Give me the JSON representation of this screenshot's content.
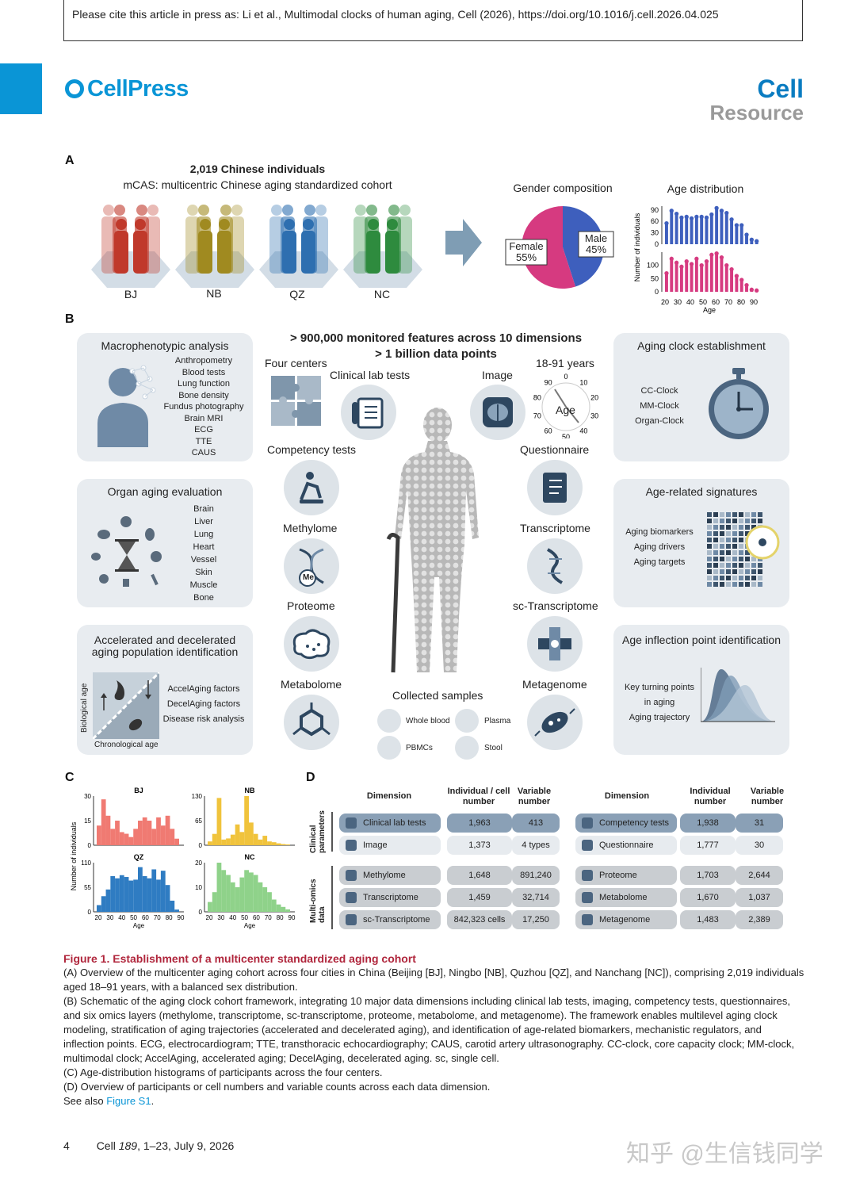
{
  "header": {
    "cite": "Please cite this article in press as: Li et al., Multimodal clocks of human aging, Cell (2026), https://doi.org/10.1016/j.cell.2026.04.025",
    "publisher": "CellPress",
    "journal": "Cell",
    "section": "Resource"
  },
  "panelA": {
    "letter": "A",
    "title": "2,019 Chinese individuals",
    "subtitle": "mCAS: multicentric Chinese aging standardized cohort",
    "centers": [
      "BJ",
      "NB",
      "QZ",
      "NC"
    ],
    "center_colors": [
      "#c0392b",
      "#a08a20",
      "#2e6fb0",
      "#2e8b3e"
    ],
    "gender_title": "Gender composition",
    "female_label": "Female",
    "female_pct": "55%",
    "male_label": "Male",
    "male_pct": "45%",
    "age_title": "Age distribution",
    "ylabel": "Number of individuals",
    "xlabel": "Age",
    "yticks_top": [
      "90",
      "60",
      "30",
      "0"
    ],
    "yticks_bottom": [
      "100",
      "50",
      "0"
    ],
    "xticks": [
      "20",
      "30",
      "40",
      "50",
      "60",
      "70",
      "80",
      "90"
    ]
  },
  "panelB": {
    "letter": "B",
    "headline1": "> 900,000 monitored features across 10 dimensions",
    "headline2": "> 1 billion data points",
    "macro": {
      "title": "Macrophenotypic analysis",
      "items": [
        "Anthropometry",
        "Blood tests",
        "Lung function",
        "Bone density",
        "Fundus photography",
        "Brain MRI",
        "ECG",
        "TTE",
        "CAUS"
      ]
    },
    "organ": {
      "title": "Organ aging evaluation",
      "items": [
        "Brain",
        "Liver",
        "Lung",
        "Heart",
        "Vessel",
        "Skin",
        "Muscle",
        "Bone"
      ]
    },
    "accel": {
      "title1": "Accelerated and decelerated",
      "title2": "aging population identification",
      "items": [
        "AccelAging factors",
        "DecelAging factors",
        "Disease risk analysis"
      ],
      "ylabel": "Biological age",
      "xlabel": "Chronological age"
    },
    "clock": {
      "title": "Aging clock establishment",
      "items": [
        "CC-Clock",
        "MM-Clock",
        "Organ-Clock"
      ]
    },
    "signatures": {
      "title": "Age-related signatures",
      "items": [
        "Aging biomarkers",
        "Aging drivers",
        "Aging targets"
      ]
    },
    "inflection": {
      "title": "Age inflection point identification",
      "items": [
        "Key turning points",
        "in aging",
        "Aging trajectory"
      ]
    },
    "dims": {
      "four_centers": "Four centers",
      "clinical": "Clinical lab tests",
      "image": "Image",
      "years": "18-91 years",
      "age": "Age",
      "dial": [
        "0",
        "10",
        "20",
        "30",
        "40",
        "50",
        "60",
        "70",
        "80",
        "90"
      ],
      "competency": "Competency tests",
      "questionnaire": "Questionnaire",
      "methylome": "Methylome",
      "transcriptome": "Transcriptome",
      "proteome": "Proteome",
      "sctranscriptome": "sc-Transcriptome",
      "metabolome": "Metabolome",
      "metagenome": "Metagenome",
      "me": "Me"
    },
    "samples": {
      "title": "Collected samples",
      "items": [
        "Whole blood",
        "Plasma",
        "PBMCs",
        "Stool"
      ]
    }
  },
  "panelC": {
    "letter": "C",
    "ylabel": "Number of individuals",
    "xlabel": "Age",
    "xticks": [
      "20",
      "30",
      "40",
      "50",
      "60",
      "70",
      "80",
      "90"
    ]
  },
  "panelD": {
    "letter": "D",
    "left_headers": [
      "Dimension",
      "Individual / cell number",
      "Variable number"
    ],
    "right_headers": [
      "Dimension",
      "Individual number",
      "Variable number"
    ],
    "group1": "Clinical parameters",
    "group2": "Multi-omics data",
    "rows_left": [
      {
        "name": "Clinical lab tests",
        "n": "1,963",
        "v": "413"
      },
      {
        "name": "Image",
        "n": "1,373",
        "v": "4 types"
      },
      {
        "name": "Methylome",
        "n": "1,648",
        "v": "891,240"
      },
      {
        "name": "Transcriptome",
        "n": "1,459",
        "v": "32,714"
      },
      {
        "name": "sc-Transcriptome",
        "n": "842,323 cells",
        "v": "17,250"
      }
    ],
    "rows_right": [
      {
        "name": "Competency tests",
        "n": "1,938",
        "v": "31"
      },
      {
        "name": "Questionnaire",
        "n": "1,777",
        "v": "30"
      },
      {
        "name": "Proteome",
        "n": "1,703",
        "v": "2,644"
      },
      {
        "name": "Metabolome",
        "n": "1,670",
        "v": "1,037"
      },
      {
        "name": "Metagenome",
        "n": "1,483",
        "v": "2,389"
      }
    ]
  },
  "chart_data": [
    {
      "type": "bar",
      "title": "Age distribution",
      "series": [
        {
          "values": [
            55,
            88,
            80,
            70,
            72,
            68,
            72,
            72,
            70,
            78,
            95,
            88,
            82,
            65,
            50,
            50,
            25,
            12,
            8
          ]
        },
        {
          "values": [
            70,
            125,
            110,
            95,
            115,
            105,
            125,
            100,
            115,
            140,
            145,
            130,
            100,
            85,
            60,
            45,
            25,
            8,
            5
          ]
        }
      ],
      "xlabel": "Age",
      "ylabel": "Number of individuals",
      "xlim": [
        18,
        91
      ]
    },
    {
      "type": "bar",
      "title": "BJ",
      "color": "#f07a72",
      "x": [
        18,
        22,
        26,
        30,
        34,
        38,
        42,
        46,
        50,
        54,
        58,
        62,
        66,
        70,
        74,
        78,
        82,
        86
      ],
      "values": [
        12,
        28,
        18,
        10,
        15,
        8,
        7,
        5,
        10,
        15,
        17,
        15,
        10,
        17,
        12,
        18,
        10,
        4
      ],
      "ylim": [
        0,
        30
      ],
      "xlabel": "Age",
      "ylabel": "Number of individuals"
    },
    {
      "type": "bar",
      "title": "NB",
      "color": "#f0c33c",
      "x": [
        18,
        22,
        26,
        30,
        34,
        38,
        42,
        46,
        50,
        54,
        58,
        62,
        66,
        70,
        74,
        78,
        82,
        86
      ],
      "values": [
        10,
        30,
        125,
        15,
        18,
        28,
        55,
        35,
        130,
        60,
        30,
        15,
        25,
        10,
        8,
        5,
        3,
        2
      ],
      "ylim": [
        0,
        130
      ],
      "xlabel": "Age"
    },
    {
      "type": "bar",
      "title": "QZ",
      "color": "#2f7cc2",
      "x": [
        18,
        22,
        26,
        30,
        34,
        38,
        42,
        46,
        50,
        54,
        58,
        62,
        66,
        70,
        74,
        78,
        82,
        86
      ],
      "values": [
        15,
        35,
        50,
        80,
        75,
        82,
        78,
        70,
        72,
        100,
        80,
        75,
        95,
        72,
        92,
        60,
        25,
        5
      ],
      "ylim": [
        0,
        110
      ],
      "xlabel": "Age",
      "ylabel": "Number of individuals"
    },
    {
      "type": "bar",
      "title": "NC",
      "color": "#8fd28a",
      "x": [
        18,
        22,
        26,
        30,
        34,
        38,
        42,
        46,
        50,
        54,
        58,
        62,
        66,
        70,
        74,
        78,
        82,
        86
      ],
      "values": [
        4,
        8,
        20,
        17,
        15,
        12,
        10,
        14,
        17,
        16,
        15,
        12,
        10,
        8,
        5,
        3,
        2,
        1
      ],
      "ylim": [
        0,
        20
      ],
      "xlabel": "Age"
    },
    {
      "type": "pie",
      "title": "Gender composition",
      "labels": [
        "Female",
        "Male"
      ],
      "values": [
        55,
        45
      ],
      "colors": [
        "#d63a80",
        "#3e5fbd"
      ]
    }
  ],
  "caption": {
    "title": "Figure 1. Establishment of a multicenter standardized aging cohort",
    "a": "(A) Overview of the multicenter aging cohort across four cities in China (Beijing [BJ], Ningbo [NB], Quzhou [QZ], and Nanchang [NC]), comprising 2,019 individuals aged 18–91 years, with a balanced sex distribution.",
    "b": "(B) Schematic of the aging clock cohort framework, integrating 10 major data dimensions including clinical lab tests, imaging, competency tests, questionnaires, and six omics layers (methylome, transcriptome, sc-transcriptome, proteome, metabolome, and metagenome). The framework enables multilevel aging clock modeling, stratification of aging trajectories (accelerated and decelerated aging), and identification of age-related biomarkers, mechanistic regulators, and inflection points. ECG, electrocardiogram; TTE, transthoracic echocardiography; CAUS, carotid artery ultrasonography. CC-clock, core capacity clock; MM-clock, multimodal clock; AccelAging, accelerated aging; DecelAging, decelerated aging. sc, single cell.",
    "c": "(C) Age-distribution histograms of participants across the four centers.",
    "d": "(D) Overview of participants or cell numbers and variable counts across each data dimension.",
    "see_prefix": "See also ",
    "see_link": "Figure S1",
    "see_suffix": "."
  },
  "footer": {
    "page": "4",
    "journal": "Cell",
    "volume": "189",
    "rest": ", 1–23, July 9, 2026",
    "watermark": "知乎 @生信钱同学"
  }
}
